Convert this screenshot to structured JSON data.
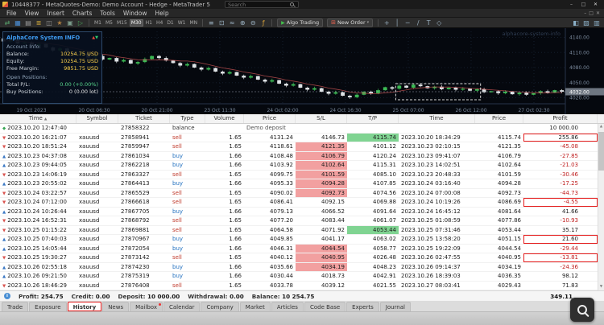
{
  "window": {
    "title": "10448377 - MetaQuotes-Demo: Demo Account - Hedge - MetaTrader 5",
    "search_placeholder": "Search",
    "minimize": "–",
    "maximize": "□",
    "close": "✕",
    "child": {
      "minimize": "–",
      "restore": "□",
      "close": "✕"
    }
  },
  "menu": {
    "items": [
      "File",
      "View",
      "Insert",
      "Charts",
      "Tools",
      "Window",
      "Help"
    ]
  },
  "toolbar": {
    "algo_trading_label": "Algo Trading",
    "new_order_label": "New Order",
    "timeframes": [
      "M1",
      "M5",
      "M15",
      "M30",
      "H1",
      "H4",
      "D1",
      "W1",
      "MN"
    ],
    "active_timeframe": "M30",
    "groups": [
      [
        {
          "name": "connection-icon",
          "glyph": "⇄",
          "color": "#5aa86f"
        },
        {
          "name": "new-chart-icon",
          "glyph": "▦",
          "color": "#4a90d9"
        },
        {
          "name": "profiles-icon",
          "glyph": "▤",
          "color": "#9a9a9a"
        },
        {
          "name": "market-watch-icon",
          "glyph": "≣",
          "color": "#caa43c"
        },
        {
          "name": "data-window-icon",
          "glyph": "◫",
          "color": "#9a9a9a"
        },
        {
          "name": "navigator-icon",
          "glyph": "★",
          "color": "#b08040"
        },
        {
          "name": "toolbox-icon",
          "glyph": "▣",
          "color": "#7a9a8a"
        },
        {
          "name": "strategy-tester-icon",
          "glyph": "▷",
          "color": "#4aa05a"
        }
      ],
      [
        {
          "name": "bar-chart-icon",
          "glyph": "≡",
          "color": "#9ab0c0"
        },
        {
          "name": "candle-chart-icon",
          "glyph": "⊡",
          "color": "#9ab0c0"
        },
        {
          "name": "line-chart-icon",
          "glyph": "≈",
          "color": "#9ab0c0"
        },
        {
          "name": "zoom-in-icon",
          "glyph": "⊕",
          "color": "#9ab0c0"
        },
        {
          "name": "zoom-out-icon",
          "glyph": "⊖",
          "color": "#9ab0c0"
        },
        {
          "name": "indicators-icon",
          "glyph": "ƒ",
          "color": "#d8a23a"
        }
      ],
      [
        {
          "name": "crosshair-icon",
          "glyph": "+",
          "color": "#9ab0c0"
        },
        {
          "name": "vertical-line-icon",
          "glyph": "│",
          "color": "#9ab0c0"
        },
        {
          "name": "horizontal-line-icon",
          "glyph": "─",
          "color": "#9ab0c0"
        },
        {
          "name": "trendline-icon",
          "glyph": "/",
          "color": "#9ab0c0"
        },
        {
          "name": "text-tool-icon",
          "glyph": "T",
          "color": "#9ab0c0"
        },
        {
          "name": "shapes-tool-icon",
          "glyph": "◇",
          "color": "#9ab0c0"
        }
      ],
      [
        {
          "name": "layout-icon",
          "glyph": "◧",
          "color": "#8bb0c8"
        },
        {
          "name": "tile-windows-icon",
          "glyph": "▨",
          "color": "#8bb0c8"
        },
        {
          "name": "docking-icon",
          "glyph": "▥",
          "color": "#8bb0c8"
        }
      ]
    ]
  },
  "chart": {
    "watermark": "alphacore-system-info",
    "info_panel": {
      "title": "AlphaCore System INFO",
      "lines": [
        {
          "type": "section",
          "text": "Account Info:"
        },
        {
          "type": "kv",
          "label": "Balance:",
          "value": "10254.75 USD",
          "color": "#ffd24a"
        },
        {
          "type": "kv",
          "label": "Equity:",
          "value": "10254.75 USD",
          "color": "#ffd24a"
        },
        {
          "type": "kv",
          "label": "Free Margin:",
          "value": "9851.75 USD",
          "color": "#ffd24a"
        },
        {
          "type": "section",
          "text": "Open Positions:"
        },
        {
          "type": "kv",
          "label": "Total P/L:",
          "value": "0.00 (+0.00%)",
          "color": "#58d68d"
        },
        {
          "type": "kv",
          "label": "Buy Positions:",
          "value": "0 (0.00 lot)",
          "color": "#e8e8e8"
        }
      ]
    }
  },
  "chart_data": {
    "type": "candlestick",
    "symbol": "XAUUSD",
    "timeframe": "M30",
    "bg": "#05080e",
    "up_color": "#3cb954",
    "down_color": "#dfe3e6",
    "ma_color": "#c05050",
    "open0": 4138,
    "closes": [
      4132,
      4136,
      4128,
      4130,
      4124,
      4127,
      4120,
      4114,
      4118,
      4110,
      4105,
      4108,
      4100,
      4103,
      4096,
      4099,
      4092,
      4095,
      4088,
      4091,
      4097,
      4103,
      4099,
      4094,
      4089,
      4084,
      4087,
      4080,
      4076,
      4079,
      4072,
      4068,
      4071,
      4064,
      4060,
      4063,
      4056,
      4052,
      4055,
      4048,
      4044,
      4047,
      4040,
      4036,
      4039,
      4032,
      4028,
      4031,
      4024,
      4021,
      4026,
      4032,
      4029,
      4035,
      4041,
      4038,
      4044,
      4040,
      4046,
      4043,
      4039,
      4042,
      4037,
      4040,
      4036,
      4038,
      4034,
      4037,
      4031,
      4033,
      4029,
      4032,
      4027,
      4030,
      4026,
      4029,
      4033,
      4030,
      4035,
      4032
    ],
    "ylim": [
      4008,
      4152
    ],
    "y_ticks": [
      4140,
      4110,
      4080,
      4050,
      4020
    ],
    "x_ticks": [
      "19 Oct 2023",
      "20 Oct 06:30",
      "20 Oct 21:00",
      "23 Oct 11:30",
      "24 Oct 02:00",
      "24 Oct 16:30",
      "25 Oct 07:00",
      "26 Oct 12:00",
      "27 Oct 02:30"
    ],
    "selection": {
      "from": 56,
      "to": 68,
      "price_top": 4048,
      "price_bottom": 4016
    },
    "last_price": 4032.0,
    "grid": true,
    "legend_position": "none"
  },
  "history": {
    "columns": [
      "Time",
      "Symbol",
      "Ticket",
      "Type",
      "Volume",
      "Price",
      "S/L",
      "T/P",
      "Time",
      "Price",
      "Profit"
    ],
    "sort_column": 0,
    "sort_glyph": "▲",
    "rows": [
      {
        "t": "2023.10.20 12:47:40",
        "sym": "",
        "tk": "27858322",
        "ty": "balance",
        "vol": "",
        "p": "Demo deposit",
        "sl": "",
        "tp": "",
        "ct": "",
        "cp": "",
        "pf": "10 000.00",
        "hit": "",
        "box": false
      },
      {
        "t": "2023.10.20 16:21:07",
        "sym": "xauusd",
        "tk": "27858941",
        "ty": "sell",
        "vol": "1.65",
        "p": "4131.24",
        "sl": "4146.73",
        "tp": "4115.74",
        "ct": "2023.10.20 18:34:29",
        "cp": "4115.74",
        "pf": "255.86",
        "hit": "tp",
        "box": true
      },
      {
        "t": "2023.10.20 18:51:24",
        "sym": "xauusd",
        "tk": "27859947",
        "ty": "sell",
        "vol": "1.65",
        "p": "4118.61",
        "sl": "4121.35",
        "tp": "4101.12",
        "ct": "2023.10.23 02:10:15",
        "cp": "4121.35",
        "pf": "-45.08",
        "hit": "sl",
        "box": false
      },
      {
        "t": "2023.10.23 04:37:08",
        "sym": "xauusd",
        "tk": "27861034",
        "ty": "buy",
        "vol": "1.66",
        "p": "4108.48",
        "sl": "4106.79",
        "tp": "4120.24",
        "ct": "2023.10.23 09:41:07",
        "cp": "4106.79",
        "pf": "-27.85",
        "hit": "sl",
        "box": false
      },
      {
        "t": "2023.10.23 09:44:05",
        "sym": "xauusd",
        "tk": "27862218",
        "ty": "buy",
        "vol": "1.66",
        "p": "4103.92",
        "sl": "4102.64",
        "tp": "4115.31",
        "ct": "2023.10.23 14:02:51",
        "cp": "4102.64",
        "pf": "-21.03",
        "hit": "sl",
        "box": false
      },
      {
        "t": "2023.10.23 14:06:19",
        "sym": "xauusd",
        "tk": "27863327",
        "ty": "sell",
        "vol": "1.65",
        "p": "4099.75",
        "sl": "4101.59",
        "tp": "4085.10",
        "ct": "2023.10.23 20:48:33",
        "cp": "4101.59",
        "pf": "-30.46",
        "hit": "sl",
        "box": false
      },
      {
        "t": "2023.10.23 20:55:02",
        "sym": "xauusd",
        "tk": "27864413",
        "ty": "buy",
        "vol": "1.66",
        "p": "4095.33",
        "sl": "4094.28",
        "tp": "4107.85",
        "ct": "2023.10.24 03:16:40",
        "cp": "4094.28",
        "pf": "-17.25",
        "hit": "sl",
        "box": false
      },
      {
        "t": "2023.10.24 03:22:57",
        "sym": "xauusd",
        "tk": "27865529",
        "ty": "sell",
        "vol": "1.65",
        "p": "4090.02",
        "sl": "4092.73",
        "tp": "4074.56",
        "ct": "2023.10.24 07:00:08",
        "cp": "4092.73",
        "pf": "-44.73",
        "hit": "sl",
        "box": false
      },
      {
        "t": "2023.10.24 07:12:00",
        "sym": "xauusd",
        "tk": "27866618",
        "ty": "sell",
        "vol": "1.65",
        "p": "4086.41",
        "sl": "4092.15",
        "tp": "4069.88",
        "ct": "2023.10.24 10:19:26",
        "cp": "4086.69",
        "pf": "-4.55",
        "hit": "",
        "box": true
      },
      {
        "t": "2023.10.24 10:26:44",
        "sym": "xauusd",
        "tk": "27867705",
        "ty": "buy",
        "vol": "1.66",
        "p": "4079.13",
        "sl": "4066.52",
        "tp": "4091.64",
        "ct": "2023.10.24 16:45:12",
        "cp": "4081.64",
        "pf": "41.66",
        "hit": "",
        "box": false
      },
      {
        "t": "2023.10.24 16:52:31",
        "sym": "xauusd",
        "tk": "27868792",
        "ty": "sell",
        "vol": "1.65",
        "p": "4077.20",
        "sl": "4083.44",
        "tp": "4061.07",
        "ct": "2023.10.25 01:08:59",
        "cp": "4077.86",
        "pf": "-10.93",
        "hit": "",
        "box": false
      },
      {
        "t": "2023.10.25 01:15:22",
        "sym": "xauusd",
        "tk": "27869881",
        "ty": "sell",
        "vol": "1.65",
        "p": "4064.58",
        "sl": "4071.92",
        "tp": "4053.44",
        "ct": "2023.10.25 07:31:46",
        "cp": "4053.44",
        "pf": "35.17",
        "hit": "tp",
        "box": false
      },
      {
        "t": "2023.10.25 07:40:03",
        "sym": "xauusd",
        "tk": "27870967",
        "ty": "buy",
        "vol": "1.66",
        "p": "4049.85",
        "sl": "4041.17",
        "tp": "4063.02",
        "ct": "2023.10.25 13:58:20",
        "cp": "4051.15",
        "pf": "21.60",
        "hit": "",
        "box": true
      },
      {
        "t": "2023.10.25 14:05:44",
        "sym": "xauusd",
        "tk": "27872054",
        "ty": "buy",
        "vol": "1.66",
        "p": "4046.31",
        "sl": "4044.54",
        "tp": "4058.77",
        "ct": "2023.10.25 19:22:09",
        "cp": "4044.54",
        "pf": "-29.44",
        "hit": "sl",
        "box": false
      },
      {
        "t": "2023.10.25 19:30:27",
        "sym": "xauusd",
        "tk": "27873142",
        "ty": "sell",
        "vol": "1.65",
        "p": "4040.12",
        "sl": "4040.95",
        "tp": "4026.48",
        "ct": "2023.10.26 02:47:55",
        "cp": "4040.95",
        "pf": "-13.81",
        "hit": "sl",
        "box": true
      },
      {
        "t": "2023.10.26 02:55:18",
        "sym": "xauusd",
        "tk": "27874230",
        "ty": "buy",
        "vol": "1.66",
        "p": "4035.66",
        "sl": "4034.19",
        "tp": "4048.23",
        "ct": "2023.10.26 09:14:37",
        "cp": "4034.19",
        "pf": "-24.36",
        "hit": "sl",
        "box": false
      },
      {
        "t": "2023.10.26 09:21:50",
        "sym": "xauusd",
        "tk": "27875319",
        "ty": "buy",
        "vol": "1.66",
        "p": "4030.44",
        "sl": "4018.73",
        "tp": "4042.91",
        "ct": "2023.10.26 18:39:03",
        "cp": "4036.35",
        "pf": "98.12",
        "hit": "",
        "box": false
      },
      {
        "t": "2023.10.26 18:46:29",
        "sym": "xauusd",
        "tk": "27876408",
        "ty": "sell",
        "vol": "1.65",
        "p": "4033.78",
        "sl": "4039.12",
        "tp": "4021.55",
        "ct": "2023.10.27 08:03:41",
        "cp": "4029.43",
        "pf": "71.83",
        "hit": "",
        "box": false
      }
    ],
    "summary": {
      "items": [
        {
          "label": "Profit:",
          "value": "254.75"
        },
        {
          "label": "Credit:",
          "value": "0.00"
        },
        {
          "label": "Deposit:",
          "value": "10 000.00"
        },
        {
          "label": "Withdrawal:",
          "value": "0.00"
        },
        {
          "label": "Balance:",
          "value": "10 254.75"
        }
      ],
      "total": "349.11"
    }
  },
  "tabs": {
    "items": [
      "Trade",
      "Exposure",
      "History",
      "News",
      "Mailbox",
      "Calendar",
      "Company",
      "Market",
      "Articles",
      "Code Base",
      "Experts",
      "Journal"
    ],
    "active": "History",
    "annotated": "History",
    "badge_on": "Mailbox"
  }
}
